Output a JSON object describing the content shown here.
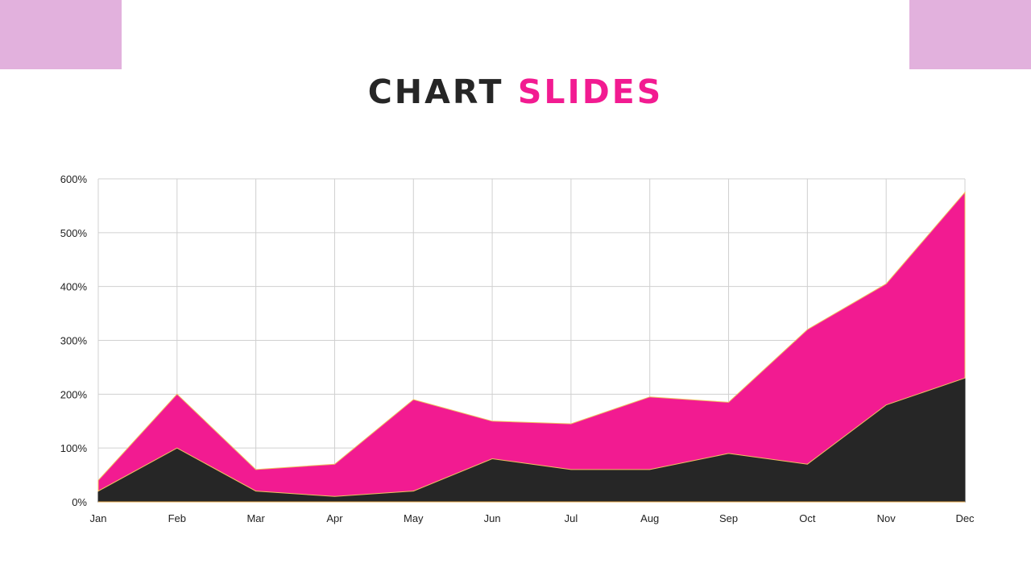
{
  "slide": {
    "title_part1": "CHART",
    "title_part2": "SLIDES",
    "colors": {
      "corner": "#e2b1dd",
      "title_dark": "#262626",
      "accent": "#f21b91"
    }
  },
  "chart_data": {
    "type": "area",
    "stacked": true,
    "categories": [
      "Jan",
      "Feb",
      "Mar",
      "Apr",
      "May",
      "Jun",
      "Jul",
      "Aug",
      "Sep",
      "Oct",
      "Nov",
      "Dec"
    ],
    "series": [
      {
        "values": [
          20,
          100,
          20,
          10,
          20,
          80,
          60,
          60,
          90,
          70,
          180,
          230
        ],
        "color": "#262626"
      },
      {
        "values": [
          20,
          100,
          40,
          60,
          170,
          70,
          85,
          135,
          95,
          250,
          225,
          345
        ],
        "color": "#f21b91"
      }
    ],
    "y_ticks": [
      "0%",
      "100%",
      "200%",
      "300%",
      "400%",
      "500%",
      "600%"
    ],
    "ylim": [
      0,
      600
    ],
    "grid": true
  }
}
